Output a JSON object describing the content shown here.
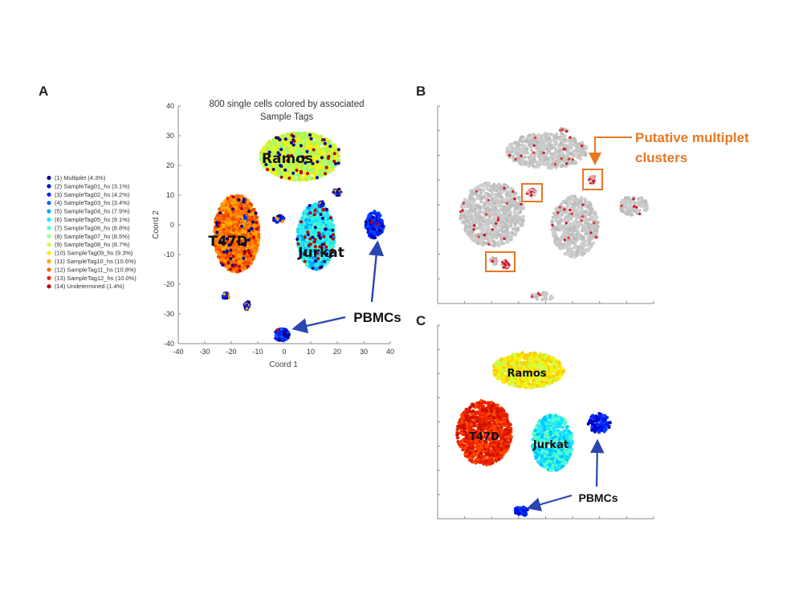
{
  "panels": {
    "a": "A",
    "b": "B",
    "c": "C"
  },
  "colors": {
    "arrow": "#2a46b0",
    "annotation_orange": "#E87722",
    "gray_points": "#c6c6c6",
    "multiplet_red": "#d11a2a"
  },
  "chart_data": [
    {
      "type": "scatter",
      "panel": "A",
      "title": "800 single cells colored by associated Sample Tags",
      "title_lines": [
        "800 single cells colored by associated",
        "Sample Tags"
      ],
      "xlabel": "Coord 1",
      "ylabel": "Coord 2",
      "xlim": [
        -40,
        40
      ],
      "ylim": [
        -40,
        40
      ],
      "xticks": [
        "-40",
        "-30",
        "-20",
        "-10",
        "0",
        "10",
        "20",
        "30",
        "40"
      ],
      "yticks": [
        "40",
        "30",
        "20",
        "10",
        "0",
        "-10",
        "-20",
        "-30",
        "-40"
      ],
      "legend_position": "left",
      "legend": [
        {
          "label": "(1) Multiplet (4.3%)",
          "color": "#00008f"
        },
        {
          "label": "(2) SampleTag01_hs (3.1%)",
          "color": "#0000c8"
        },
        {
          "label": "(3) SampleTag02_hs (4.2%)",
          "color": "#0022ff"
        },
        {
          "label": "(4) SampleTag03_hs (3.4%)",
          "color": "#0066ff"
        },
        {
          "label": "(5) SampleTag04_hs (7.9%)",
          "color": "#00aaff"
        },
        {
          "label": "(6) SampleTag05_hs (9.1%)",
          "color": "#1ae5ff"
        },
        {
          "label": "(7) SampleTag06_hs (8.8%)",
          "color": "#55ffc8"
        },
        {
          "label": "(8) SampleTag07_hs (8.5%)",
          "color": "#99ff88"
        },
        {
          "label": "(9) SampleTag08_hs (8.7%)",
          "color": "#ccff44"
        },
        {
          "label": "(10) SampleTag09_hs (9.3%)",
          "color": "#ffee00"
        },
        {
          "label": "(11) SampleTag10_hs (10.6%)",
          "color": "#ffaa00"
        },
        {
          "label": "(12) SampleTag11_hs (10.8%)",
          "color": "#ff6600"
        },
        {
          "label": "(13) SampleTag12_hs (10.0%)",
          "color": "#ee2200"
        },
        {
          "label": "(14) Undetermined (1.4%)",
          "color": "#bb0000"
        }
      ],
      "clusters": [
        {
          "name": "Ramos",
          "cx": 6,
          "cy": 23,
          "rx": 15,
          "ry": 8,
          "colors": [
            "#ccff44",
            "#99ff88",
            "#ffee00",
            "#b8f04a"
          ]
        },
        {
          "name": "T47D",
          "cx": -18,
          "cy": -3,
          "rx": 8.5,
          "ry": 13,
          "colors": [
            "#ff6600",
            "#ffaa00",
            "#ee4400",
            "#ff8800"
          ]
        },
        {
          "name": "Jurkat",
          "cx": 12,
          "cy": -4,
          "rx": 7,
          "ry": 11,
          "colors": [
            "#1ae5ff",
            "#55ffc8",
            "#00aaff",
            "#3cf0e0"
          ]
        },
        {
          "name": "",
          "cx": 34,
          "cy": 0,
          "rx": 3.5,
          "ry": 4.5,
          "colors": [
            "#0022ff",
            "#0000c8",
            "#0044ff"
          ]
        },
        {
          "name": "",
          "cx": -1,
          "cy": -37,
          "rx": 2.8,
          "ry": 2,
          "colors": [
            "#0022ff",
            "#0066ff",
            "#0000c8"
          ]
        }
      ],
      "annotations": [
        {
          "text": "PBMCs"
        }
      ]
    },
    {
      "type": "scatter",
      "panel": "B",
      "xlim": [
        -40,
        40
      ],
      "ylim": [
        -40,
        40
      ],
      "annotations": [
        {
          "text_lines": [
            "Putative multiplet",
            "clusters"
          ]
        }
      ]
    },
    {
      "type": "scatter",
      "panel": "C",
      "xlim": [
        -40,
        40
      ],
      "ylim": [
        -40,
        40
      ],
      "clusters": [
        {
          "name": "Ramos",
          "colors": [
            "#ffee00",
            "#ccff44",
            "#ffcc00"
          ]
        },
        {
          "name": "T47D",
          "colors": [
            "#ee2200",
            "#cc1100",
            "#ff4400"
          ]
        },
        {
          "name": "Jurkat",
          "colors": [
            "#1ae5ff",
            "#55ffc8",
            "#00c8ff"
          ]
        }
      ],
      "annotations": [
        {
          "text": "PBMCs"
        }
      ]
    }
  ]
}
